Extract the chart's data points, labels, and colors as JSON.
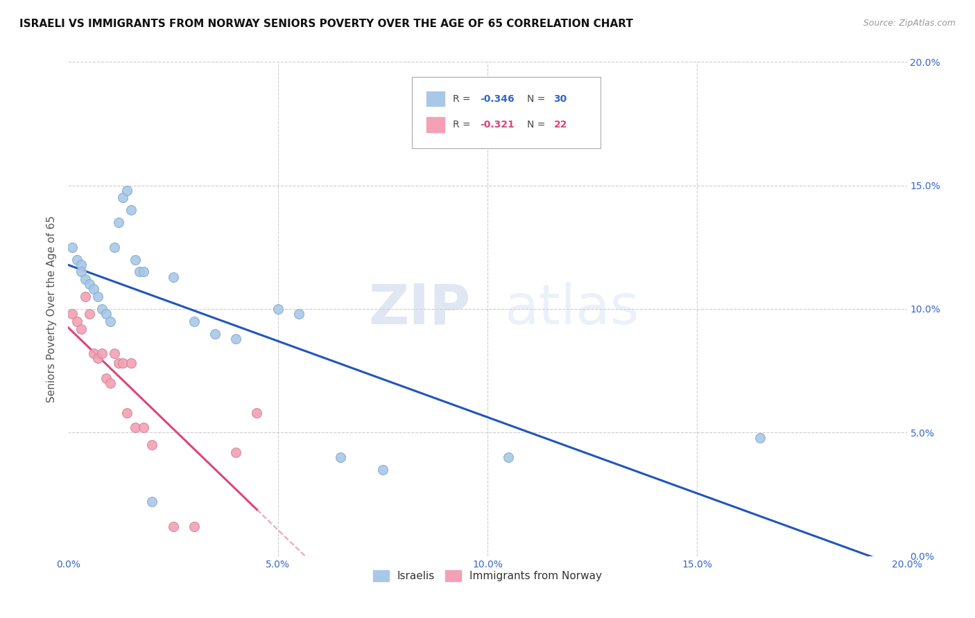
{
  "title": "ISRAELI VS IMMIGRANTS FROM NORWAY SENIORS POVERTY OVER THE AGE OF 65 CORRELATION CHART",
  "source": "Source: ZipAtlas.com",
  "ylabel": "Seniors Poverty Over the Age of 65",
  "xlim": [
    0.0,
    0.2
  ],
  "ylim": [
    0.0,
    0.2
  ],
  "israeli_color": "#A8C8E8",
  "norway_color": "#F4A0B5",
  "trendline_israeli_color": "#2255BB",
  "trendline_norway_color": "#DD4477",
  "legend_label_israeli": "Israelis",
  "legend_label_norway": "Immigrants from Norway",
  "r_israeli": -0.346,
  "n_israeli": 30,
  "r_norway": -0.321,
  "n_norway": 22,
  "watermark_zip": "ZIP",
  "watermark_atlas": "atlas",
  "background_color": "#ffffff",
  "grid_color": "#CCCCCC",
  "israeli_x": [
    0.001,
    0.002,
    0.003,
    0.003,
    0.004,
    0.005,
    0.006,
    0.007,
    0.008,
    0.009,
    0.01,
    0.011,
    0.012,
    0.013,
    0.014,
    0.015,
    0.016,
    0.017,
    0.018,
    0.02,
    0.025,
    0.03,
    0.035,
    0.04,
    0.05,
    0.055,
    0.065,
    0.075,
    0.105,
    0.165
  ],
  "israeli_y": [
    0.125,
    0.12,
    0.118,
    0.115,
    0.112,
    0.11,
    0.108,
    0.105,
    0.1,
    0.098,
    0.095,
    0.125,
    0.135,
    0.145,
    0.148,
    0.14,
    0.12,
    0.115,
    0.115,
    0.022,
    0.113,
    0.095,
    0.09,
    0.088,
    0.1,
    0.098,
    0.04,
    0.035,
    0.04,
    0.048
  ],
  "norway_x": [
    0.001,
    0.002,
    0.003,
    0.004,
    0.005,
    0.006,
    0.007,
    0.008,
    0.009,
    0.01,
    0.011,
    0.012,
    0.013,
    0.014,
    0.015,
    0.016,
    0.018,
    0.02,
    0.025,
    0.03,
    0.04,
    0.045
  ],
  "norway_y": [
    0.098,
    0.095,
    0.092,
    0.105,
    0.098,
    0.082,
    0.08,
    0.082,
    0.072,
    0.07,
    0.082,
    0.078,
    0.078,
    0.058,
    0.078,
    0.052,
    0.052,
    0.045,
    0.012,
    0.012,
    0.042,
    0.058
  ]
}
